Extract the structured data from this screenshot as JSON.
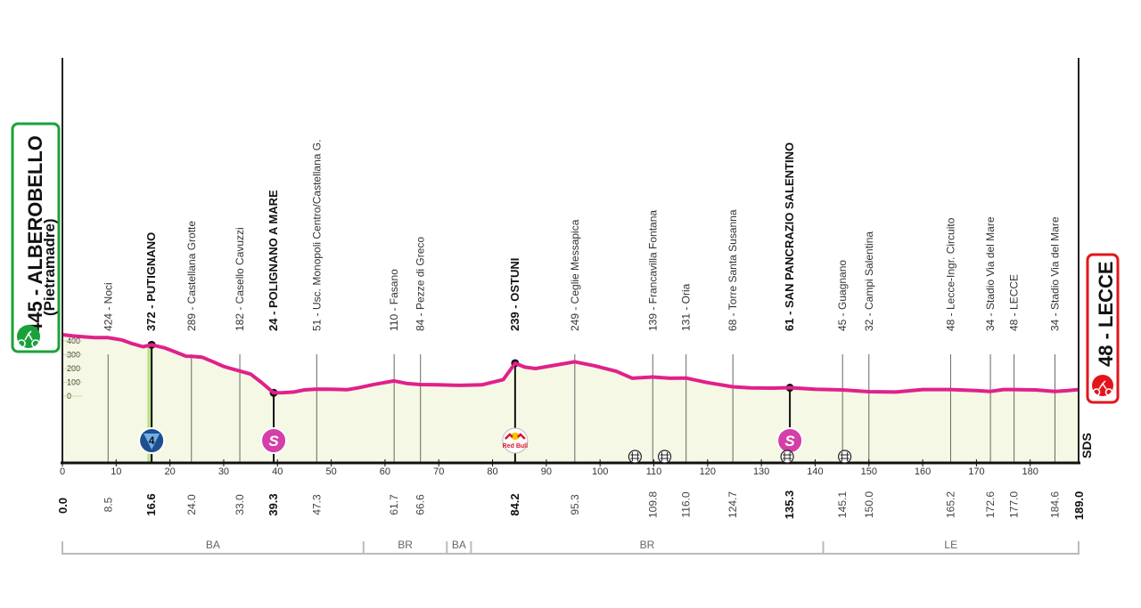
{
  "start": {
    "name": "445 - ALBEROBELLO",
    "sub": "(Pietramadre)",
    "color": "#1aa23a"
  },
  "finish": {
    "name": "48 - LECCE",
    "color": "#e3151a"
  },
  "brand": "SDS",
  "colors": {
    "profile": "#e0218a",
    "fill": "#f5f8e4",
    "sprint": "#d43fa8",
    "kom": "#2a6fb6",
    "climb": "#bfe08a"
  },
  "chart_data": {
    "type": "area",
    "x_label_unit": "km",
    "distance_total": 189.0,
    "xlim": [
      0,
      189
    ],
    "ylim": [
      0,
      450
    ],
    "y_ticks": [
      "400",
      "300",
      "200",
      "100",
      "0"
    ],
    "y_tick_values": [
      400,
      300,
      200,
      100,
      0
    ],
    "x_ticks": [
      "0",
      "10",
      "20",
      "30",
      "40",
      "50",
      "60",
      "70",
      "80",
      "90",
      "100",
      "110",
      "120",
      "130",
      "140",
      "150",
      "160",
      "170",
      "180"
    ],
    "x_tick_values": [
      0,
      10,
      20,
      30,
      40,
      50,
      60,
      70,
      80,
      90,
      100,
      110,
      120,
      130,
      140,
      150,
      160,
      170,
      180
    ],
    "profile": [
      [
        0,
        445
      ],
      [
        2,
        436
      ],
      [
        4,
        430
      ],
      [
        6,
        424
      ],
      [
        8.5,
        424
      ],
      [
        11,
        408
      ],
      [
        13,
        380
      ],
      [
        15,
        358
      ],
      [
        16.6,
        372
      ],
      [
        19,
        350
      ],
      [
        21,
        320
      ],
      [
        23,
        290
      ],
      [
        24,
        289
      ],
      [
        26,
        282
      ],
      [
        28,
        250
      ],
      [
        30,
        215
      ],
      [
        33,
        182
      ],
      [
        35,
        160
      ],
      [
        37,
        100
      ],
      [
        39.3,
        24
      ],
      [
        41,
        25
      ],
      [
        43,
        30
      ],
      [
        45,
        45
      ],
      [
        47.3,
        51
      ],
      [
        50,
        50
      ],
      [
        53,
        47
      ],
      [
        55,
        60
      ],
      [
        58,
        85
      ],
      [
        61.7,
        110
      ],
      [
        64,
        92
      ],
      [
        66.6,
        84
      ],
      [
        70,
        82
      ],
      [
        74,
        78
      ],
      [
        78,
        82
      ],
      [
        82,
        120
      ],
      [
        84.2,
        239
      ],
      [
        86,
        210
      ],
      [
        88,
        200
      ],
      [
        91,
        220
      ],
      [
        95.3,
        249
      ],
      [
        99,
        220
      ],
      [
        103,
        180
      ],
      [
        106,
        130
      ],
      [
        109.8,
        139
      ],
      [
        113,
        130
      ],
      [
        116,
        131
      ],
      [
        120,
        98
      ],
      [
        124.7,
        68
      ],
      [
        128,
        60
      ],
      [
        132,
        58
      ],
      [
        135.3,
        61
      ],
      [
        140,
        50
      ],
      [
        145.1,
        45
      ],
      [
        150,
        32
      ],
      [
        155,
        30
      ],
      [
        160,
        48
      ],
      [
        165.2,
        48
      ],
      [
        170,
        40
      ],
      [
        172.6,
        34
      ],
      [
        175,
        48
      ],
      [
        177,
        48
      ],
      [
        181,
        45
      ],
      [
        184.6,
        34
      ],
      [
        187,
        40
      ],
      [
        189,
        48
      ]
    ],
    "waypoints": [
      {
        "km": 8.5,
        "km_label": "8.5",
        "alt": 424,
        "label": "424 - Noci",
        "bold": false
      },
      {
        "km": 16.6,
        "km_label": "16.6",
        "alt": 372,
        "label": "372 - PUTIGNANO",
        "bold": true,
        "marker": "kom",
        "kom_text": "4"
      },
      {
        "km": 24.0,
        "km_label": "24.0",
        "alt": 289,
        "label": "289 - Castellana Grotte",
        "bold": false
      },
      {
        "km": 33.0,
        "km_label": "33.0",
        "alt": 182,
        "label": "182 - Casello Cavuzzi",
        "bold": false
      },
      {
        "km": 39.3,
        "km_label": "39.3",
        "alt": 24,
        "label": "24 - POLIGNANO A MARE",
        "bold": true,
        "marker": "sprint",
        "sprint_text": "S"
      },
      {
        "km": 47.3,
        "km_label": "47.3",
        "alt": 51,
        "label": "51 - Usc. Monopoli Centro/Castellana G.",
        "bold": false
      },
      {
        "km": 61.7,
        "km_label": "61.7",
        "alt": 110,
        "label": "110 - Fasano",
        "bold": false
      },
      {
        "km": 66.6,
        "km_label": "66.6",
        "alt": 84,
        "label": "84 - Pezze di Greco",
        "bold": false
      },
      {
        "km": 84.2,
        "km_label": "84.2",
        "alt": 239,
        "label": "239 - OSTUNI",
        "bold": true,
        "marker": "redbull",
        "redbull_text": "Red Bull"
      },
      {
        "km": 95.3,
        "km_label": "95.3",
        "alt": 249,
        "label": "249 - Ceglie Messapica",
        "bold": false
      },
      {
        "km": 109.8,
        "km_label": "109.8",
        "alt": 139,
        "label": "139 - Francavilla Fontana",
        "bold": false
      },
      {
        "km": 116.0,
        "km_label": "116.0",
        "alt": 131,
        "label": "131 - Oria",
        "bold": false
      },
      {
        "km": 124.7,
        "km_label": "124.7",
        "alt": 68,
        "label": "68 - Torre Santa Susanna",
        "bold": false
      },
      {
        "km": 135.3,
        "km_label": "135.3",
        "alt": 61,
        "label": "61 - SAN PANCRAZIO SALENTINO",
        "bold": true,
        "marker": "sprint",
        "sprint_text": "S"
      },
      {
        "km": 145.1,
        "km_label": "145.1",
        "alt": 45,
        "label": "45 - Guagnano",
        "bold": false
      },
      {
        "km": 150.0,
        "km_label": "150.0",
        "alt": 32,
        "label": "32 - Campi Salentina",
        "bold": false
      },
      {
        "km": 165.2,
        "km_label": "165.2",
        "alt": 48,
        "label": "48 - Lecce-Ingr. Circuito",
        "bold": false
      },
      {
        "km": 172.6,
        "km_label": "172.6",
        "alt": 34,
        "label": "34 - Stadio Via del Mare",
        "bold": false
      },
      {
        "km": 177.0,
        "km_label": "177.0",
        "alt": 48,
        "label": "48 - LECCE",
        "bold": false
      },
      {
        "km": 184.6,
        "km_label": "184.6",
        "alt": 34,
        "label": "34 - Stadio Via del Mare",
        "bold": false
      }
    ],
    "km_start_label": "0.0",
    "km_end_label": "189.0",
    "crossings_km": [
      106.5,
      112.0,
      134.8,
      145.5
    ],
    "provinces": [
      {
        "name": "BA",
        "from": 0,
        "to": 56
      },
      {
        "name": "BR",
        "from": 56,
        "to": 71.5
      },
      {
        "name": "BA",
        "from": 71.5,
        "to": 76
      },
      {
        "name": "BR",
        "from": 76,
        "to": 141.5
      },
      {
        "name": "LE",
        "from": 141.5,
        "to": 189
      }
    ]
  }
}
